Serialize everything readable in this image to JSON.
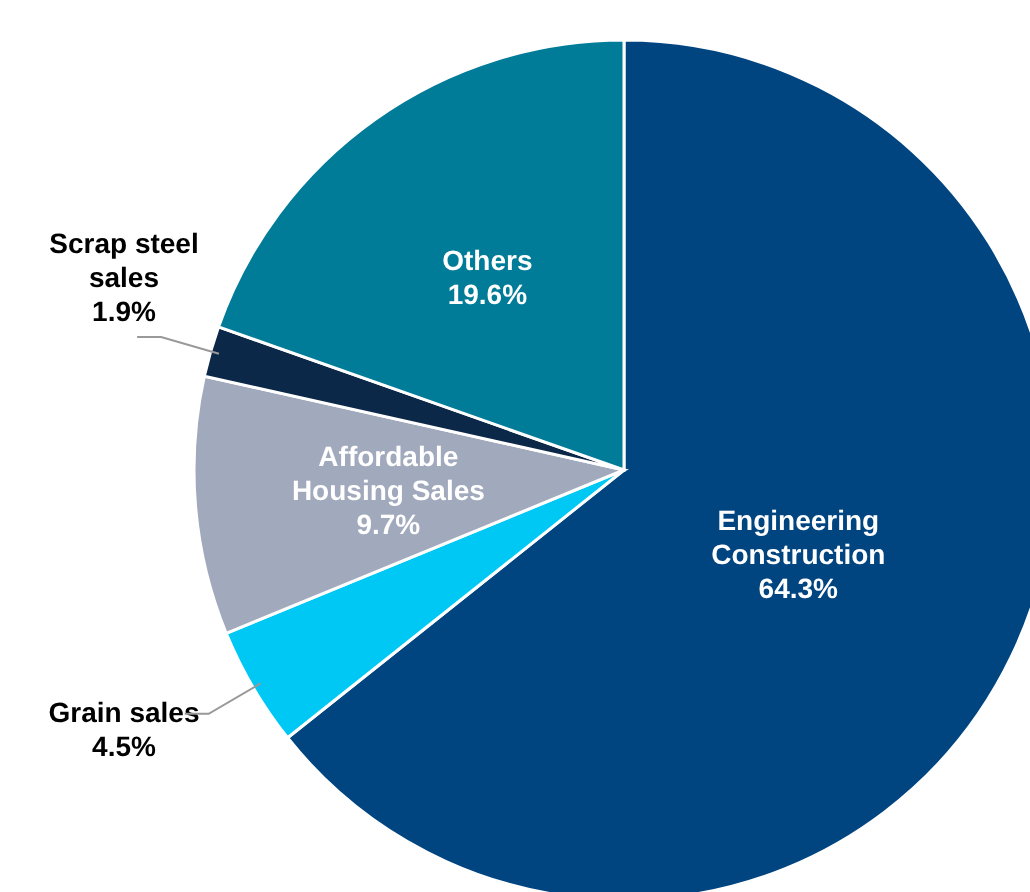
{
  "chart_data": {
    "type": "pie",
    "categories": [
      "Engineering Construction",
      "Grain sales",
      "Affordable Housing Sales",
      "Scrap steel sales",
      "Others"
    ],
    "values": [
      64.3,
      4.5,
      9.7,
      1.9,
      19.6
    ],
    "colors": [
      "#004480",
      "#00c8f5",
      "#a1a9bc",
      "#0c2848",
      "#007b98"
    ],
    "value_labels": [
      "64.3%",
      "4.5%",
      "9.7%",
      "1.9%",
      "19.6%"
    ]
  }
}
